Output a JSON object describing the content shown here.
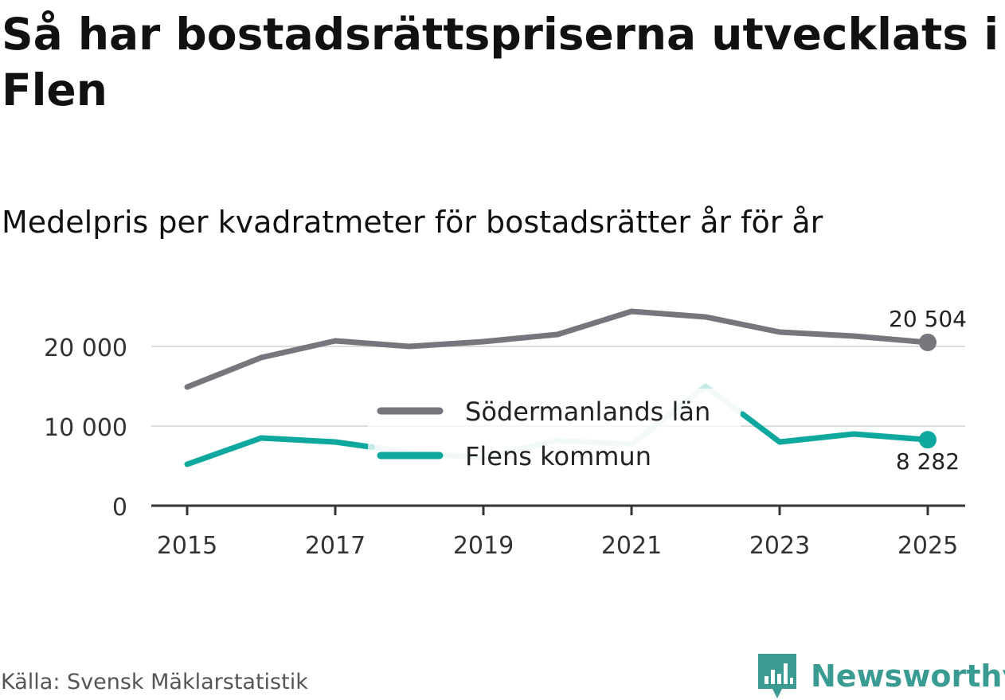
{
  "title": "Så har bostadsrättspriserna utvecklats i Flen",
  "subtitle": "Medelpris per kvadratmeter för bostadsrätter år för år",
  "source": "Källa: Svensk Mäklarstatistik",
  "brand": {
    "name": "Newsworthy",
    "color": "#3a9b92"
  },
  "chart_data": {
    "type": "line",
    "x": [
      2015,
      2016,
      2017,
      2018,
      2019,
      2020,
      2021,
      2022,
      2023,
      2024,
      2025
    ],
    "x_tick_labels": [
      "2015",
      "2017",
      "2019",
      "2021",
      "2023",
      "2025"
    ],
    "x_ticks": [
      2015,
      2017,
      2019,
      2021,
      2023,
      2025
    ],
    "y_ticks": [
      0,
      10000,
      20000
    ],
    "y_tick_labels": [
      "0",
      "10 000",
      "20 000"
    ],
    "ylim": [
      0,
      22500
    ],
    "grid": true,
    "legend_position": "center",
    "series": [
      {
        "name": "Södermanlands län",
        "color": "#77767c",
        "values": [
          14900,
          18600,
          20700,
          20000,
          20600,
          21500,
          24400,
          23700,
          21800,
          21300,
          20504
        ],
        "end_label": "20 504"
      },
      {
        "name": "Flens kommun",
        "color": "#0fa89e",
        "light_color": "#c9ebe8",
        "values": [
          5200,
          8500,
          8000,
          6700,
          6000,
          8200,
          7700,
          15000,
          8000,
          9000,
          8282
        ],
        "low_confidence": [
          false,
          false,
          false,
          true,
          true,
          true,
          true,
          true,
          false,
          false,
          false
        ],
        "end_label": "8 282"
      }
    ]
  }
}
